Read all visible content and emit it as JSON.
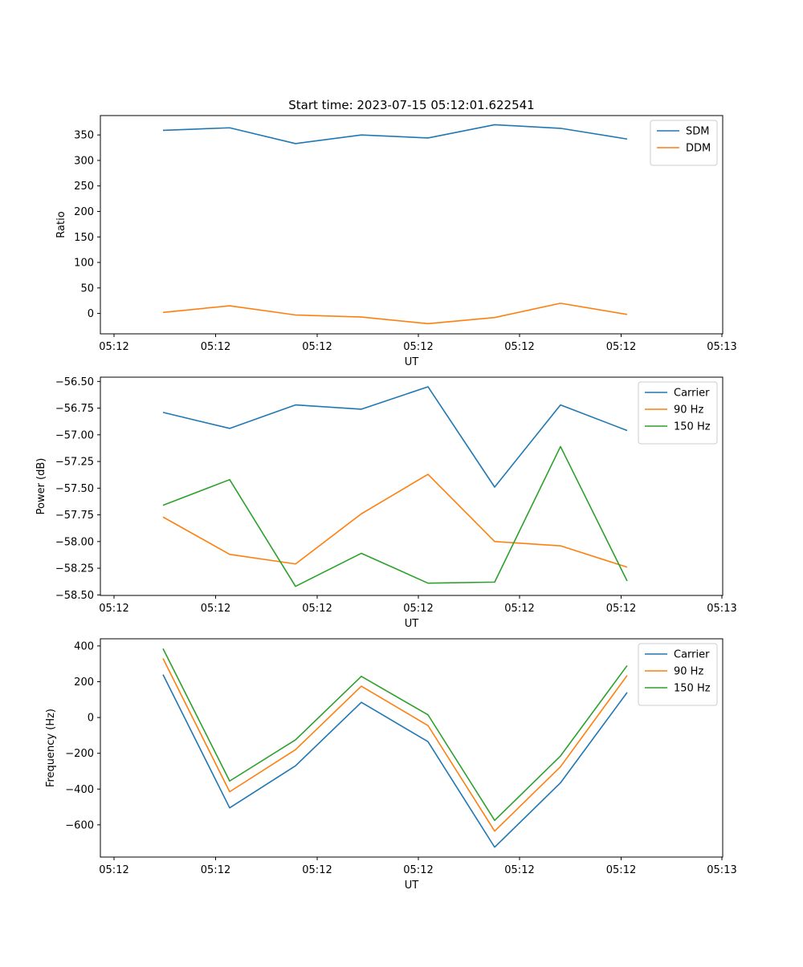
{
  "chart_data": [
    {
      "type": "line",
      "title": "Start time: 2023-07-15 05:12:01.622541",
      "xlabel": "UT",
      "ylabel": "Ratio",
      "x_ticks": [
        "05:12",
        "05:12",
        "05:12",
        "05:12",
        "05:12",
        "05:12",
        "05:13"
      ],
      "y_ticks": [
        "0",
        "50",
        "100",
        "150",
        "200",
        "250",
        "300",
        "350"
      ],
      "ylim": [
        -40,
        388
      ],
      "legend_position": "top-right",
      "series": [
        {
          "name": "SDM",
          "color": "#1f77b4",
          "values": [
            359,
            364,
            333,
            350,
            344,
            370,
            363,
            342
          ]
        },
        {
          "name": "DDM",
          "color": "#ff7f0e",
          "values": [
            2,
            15,
            -3,
            -7,
            -20,
            -8,
            20,
            -2
          ]
        }
      ]
    },
    {
      "type": "line",
      "title": "",
      "xlabel": "UT",
      "ylabel": "Power (dB)",
      "x_ticks": [
        "05:12",
        "05:12",
        "05:12",
        "05:12",
        "05:12",
        "05:12",
        "05:13"
      ],
      "y_ticks": [
        "−56.50",
        "−56.75",
        "−57.00",
        "−57.25",
        "−57.50",
        "−57.75",
        "−58.00",
        "−58.25",
        "−58.50"
      ],
      "ylim": [
        -58.505,
        -56.46
      ],
      "legend_position": "top-right",
      "series": [
        {
          "name": "Carrier",
          "color": "#1f77b4",
          "values": [
            -56.79,
            -56.94,
            -56.72,
            -56.76,
            -56.55,
            -57.49,
            -56.72,
            -56.96
          ]
        },
        {
          "name": "90 Hz",
          "color": "#ff7f0e",
          "values": [
            -57.77,
            -58.12,
            -58.21,
            -57.74,
            -57.37,
            -58.0,
            -58.04,
            -58.24
          ]
        },
        {
          "name": "150 Hz",
          "color": "#2ca02c",
          "values": [
            -57.66,
            -57.42,
            -58.42,
            -58.11,
            -58.39,
            -58.38,
            -57.11,
            -58.37
          ]
        }
      ]
    },
    {
      "type": "line",
      "title": "",
      "xlabel": "UT",
      "ylabel": "Frequency (Hz)",
      "x_ticks": [
        "05:12",
        "05:12",
        "05:12",
        "05:12",
        "05:12",
        "05:12",
        "05:13"
      ],
      "y_ticks": [
        "−600",
        "−400",
        "−200",
        "0",
        "200",
        "400"
      ],
      "ylim": [
        -780,
        440
      ],
      "legend_position": "top-right",
      "series": [
        {
          "name": "Carrier",
          "color": "#1f77b4",
          "values": [
            240,
            -505,
            -270,
            85,
            -135,
            -725,
            -365,
            140
          ]
        },
        {
          "name": "90 Hz",
          "color": "#ff7f0e",
          "values": [
            330,
            -415,
            -180,
            175,
            -45,
            -635,
            -275,
            235
          ]
        },
        {
          "name": "150 Hz",
          "color": "#2ca02c",
          "values": [
            385,
            -355,
            -125,
            230,
            15,
            -575,
            -215,
            290
          ]
        }
      ]
    }
  ]
}
